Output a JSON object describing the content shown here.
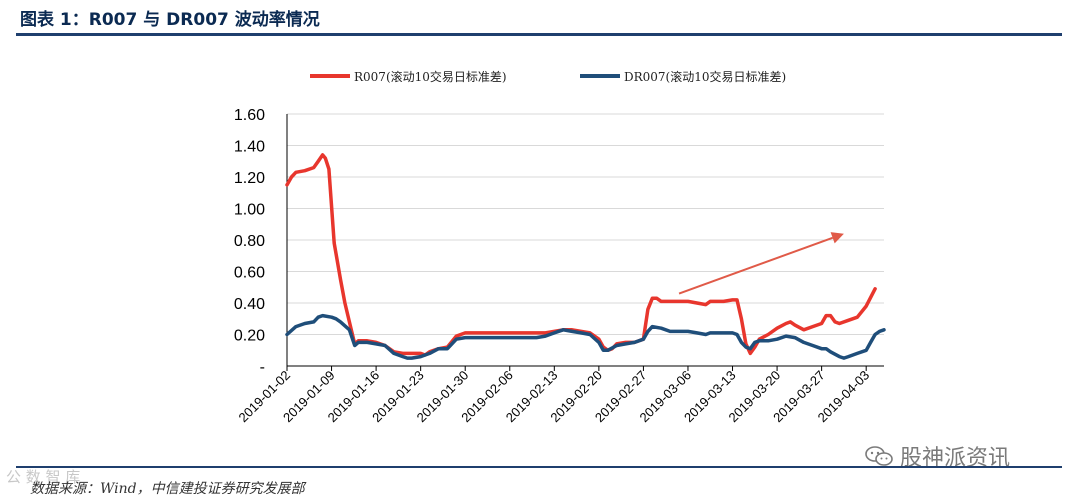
{
  "figure_title": "图表 1：R007 与 DR007 波动率情况",
  "source_note": "数据来源：Wind，中信建投证券研究发展部",
  "watermark": "股神派资讯",
  "watermark_left": "公 数 智 库",
  "chart_data": {
    "type": "line",
    "title": "",
    "xlabel": "",
    "ylabel": "",
    "ylim": [
      0,
      1.6
    ],
    "yticks": [
      "-",
      "0.20",
      "0.40",
      "0.60",
      "0.80",
      "1.00",
      "1.20",
      "1.40",
      "1.60"
    ],
    "xticks": [
      "2019-01-02",
      "2019-01-09",
      "2019-01-16",
      "2019-01-23",
      "2019-01-30",
      "2019-02-06",
      "2019-02-13",
      "2019-02-20",
      "2019-02-27",
      "2019-03-06",
      "2019-03-13",
      "2019-03-20",
      "2019-03-27",
      "2019-04-03"
    ],
    "grid": true,
    "legend_position": "top",
    "colors": {
      "r007": "#e8362d",
      "dr007": "#1f4e7a",
      "arrow": "#e05a48",
      "grid": "#d9d9d9"
    },
    "series": [
      {
        "name": "R007(滚动10交易日标准差)",
        "key": "r007",
        "points": [
          [
            0,
            1.15
          ],
          [
            0.5,
            1.2
          ],
          [
            1,
            1.23
          ],
          [
            2,
            1.24
          ],
          [
            3,
            1.26
          ],
          [
            3.5,
            1.3
          ],
          [
            4,
            1.34
          ],
          [
            4.3,
            1.32
          ],
          [
            4.7,
            1.25
          ],
          [
            5.3,
            0.78
          ],
          [
            6,
            0.55
          ],
          [
            6.5,
            0.4
          ],
          [
            7,
            0.28
          ],
          [
            7.6,
            0.14
          ],
          [
            8,
            0.16
          ],
          [
            9,
            0.16
          ],
          [
            10,
            0.15
          ],
          [
            11,
            0.13
          ],
          [
            12,
            0.09
          ],
          [
            13,
            0.08
          ],
          [
            14,
            0.08
          ],
          [
            15,
            0.08
          ],
          [
            15.5,
            0.07
          ],
          [
            16,
            0.09
          ],
          [
            17,
            0.11
          ],
          [
            18,
            0.12
          ],
          [
            19,
            0.19
          ],
          [
            20,
            0.21
          ],
          [
            22,
            0.21
          ],
          [
            24,
            0.21
          ],
          [
            26,
            0.21
          ],
          [
            28,
            0.21
          ],
          [
            29,
            0.21
          ],
          [
            30,
            0.22
          ],
          [
            31,
            0.23
          ],
          [
            32,
            0.23
          ],
          [
            33,
            0.22
          ],
          [
            34,
            0.21
          ],
          [
            35,
            0.17
          ],
          [
            35.5,
            0.12
          ],
          [
            36,
            0.1
          ],
          [
            36.5,
            0.11
          ],
          [
            37,
            0.14
          ],
          [
            38,
            0.15
          ],
          [
            39,
            0.15
          ],
          [
            40,
            0.17
          ],
          [
            40.5,
            0.36
          ],
          [
            41,
            0.43
          ],
          [
            41.5,
            0.43
          ],
          [
            42,
            0.41
          ],
          [
            43,
            0.41
          ],
          [
            44,
            0.41
          ],
          [
            45,
            0.41
          ],
          [
            46,
            0.4
          ],
          [
            47,
            0.39
          ],
          [
            47.5,
            0.41
          ],
          [
            48,
            0.41
          ],
          [
            49,
            0.41
          ],
          [
            50,
            0.42
          ],
          [
            50.5,
            0.42
          ],
          [
            51,
            0.3
          ],
          [
            51.5,
            0.14
          ],
          [
            52,
            0.08
          ],
          [
            52.5,
            0.12
          ],
          [
            53,
            0.17
          ],
          [
            54,
            0.2
          ],
          [
            55,
            0.24
          ],
          [
            56,
            0.27
          ],
          [
            56.5,
            0.28
          ],
          [
            57,
            0.26
          ],
          [
            58,
            0.23
          ],
          [
            59,
            0.25
          ],
          [
            60,
            0.27
          ],
          [
            60.5,
            0.32
          ],
          [
            61,
            0.32
          ],
          [
            61.5,
            0.28
          ],
          [
            62,
            0.27
          ],
          [
            63,
            0.29
          ],
          [
            64,
            0.31
          ],
          [
            65,
            0.38
          ],
          [
            66,
            0.49
          ]
        ]
      },
      {
        "name": "DR007(滚动10交易日标准差)",
        "key": "dr007",
        "points": [
          [
            0,
            0.2
          ],
          [
            1,
            0.25
          ],
          [
            2,
            0.27
          ],
          [
            3,
            0.28
          ],
          [
            3.5,
            0.31
          ],
          [
            4,
            0.32
          ],
          [
            5,
            0.31
          ],
          [
            5.5,
            0.3
          ],
          [
            6,
            0.28
          ],
          [
            7,
            0.23
          ],
          [
            7.6,
            0.13
          ],
          [
            8,
            0.15
          ],
          [
            9,
            0.15
          ],
          [
            10,
            0.14
          ],
          [
            11,
            0.13
          ],
          [
            12,
            0.08
          ],
          [
            13,
            0.06
          ],
          [
            13.5,
            0.05
          ],
          [
            14,
            0.05
          ],
          [
            15,
            0.06
          ],
          [
            16,
            0.08
          ],
          [
            17,
            0.11
          ],
          [
            18,
            0.11
          ],
          [
            19,
            0.17
          ],
          [
            20,
            0.18
          ],
          [
            22,
            0.18
          ],
          [
            24,
            0.18
          ],
          [
            26,
            0.18
          ],
          [
            28,
            0.18
          ],
          [
            29,
            0.19
          ],
          [
            30,
            0.21
          ],
          [
            31,
            0.23
          ],
          [
            32,
            0.22
          ],
          [
            33,
            0.21
          ],
          [
            34,
            0.2
          ],
          [
            35,
            0.15
          ],
          [
            35.5,
            0.1
          ],
          [
            36,
            0.1
          ],
          [
            37,
            0.13
          ],
          [
            38,
            0.14
          ],
          [
            39,
            0.15
          ],
          [
            40,
            0.17
          ],
          [
            40.5,
            0.22
          ],
          [
            41,
            0.25
          ],
          [
            42,
            0.24
          ],
          [
            43,
            0.22
          ],
          [
            44,
            0.22
          ],
          [
            45,
            0.22
          ],
          [
            46,
            0.21
          ],
          [
            47,
            0.2
          ],
          [
            47.5,
            0.21
          ],
          [
            48,
            0.21
          ],
          [
            49,
            0.21
          ],
          [
            50,
            0.21
          ],
          [
            50.5,
            0.2
          ],
          [
            51,
            0.15
          ],
          [
            51.5,
            0.12
          ],
          [
            52,
            0.11
          ],
          [
            52.5,
            0.15
          ],
          [
            53,
            0.16
          ],
          [
            54,
            0.16
          ],
          [
            55,
            0.17
          ],
          [
            56,
            0.19
          ],
          [
            57,
            0.18
          ],
          [
            58,
            0.15
          ],
          [
            59,
            0.13
          ],
          [
            60,
            0.11
          ],
          [
            60.5,
            0.11
          ],
          [
            61,
            0.09
          ],
          [
            62,
            0.06
          ],
          [
            62.5,
            0.05
          ],
          [
            63,
            0.06
          ],
          [
            64,
            0.08
          ],
          [
            65,
            0.1
          ],
          [
            65.5,
            0.15
          ],
          [
            66,
            0.2
          ],
          [
            66.5,
            0.22
          ],
          [
            67,
            0.23
          ]
        ]
      }
    ],
    "annotation": {
      "type": "arrow",
      "from": [
        44,
        0.46
      ],
      "to": [
        62.5,
        0.84
      ],
      "color": "#e05a48"
    }
  }
}
